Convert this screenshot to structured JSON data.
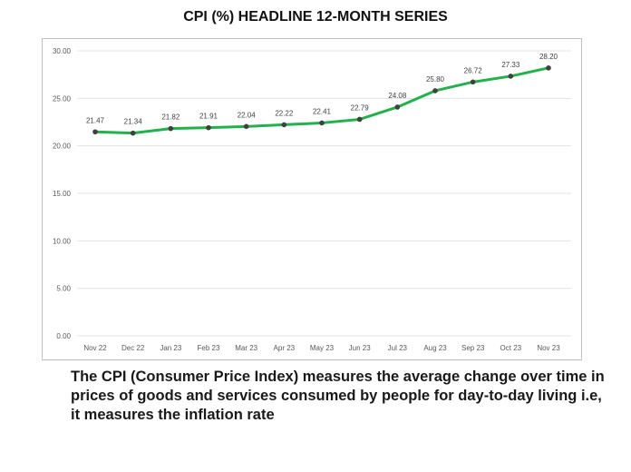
{
  "chart_data": {
    "type": "line",
    "title": "CPI (%)  HEADLINE 12-MONTH SERIES",
    "categories": [
      "Nov 22",
      "Dec 22",
      "Jan 23",
      "Feb 23",
      "Mar 23",
      "Apr 23",
      "May 23",
      "Jun 23",
      "Jul 23",
      "Aug 23",
      "Sep 23",
      "Oct 23",
      "Nov 23"
    ],
    "series": [
      {
        "values": [
          21.47,
          21.34,
          21.82,
          21.91,
          22.04,
          22.22,
          22.41,
          22.79,
          24.08,
          25.8,
          26.72,
          27.33,
          28.2
        ],
        "color": "#22b14c",
        "marker_color": "#404040"
      }
    ],
    "data_labels": [
      "21.47",
      "21.34",
      "21.82",
      "21.91",
      "22.04",
      "22.22",
      "22.41",
      "22.79",
      "24.08",
      "25.80",
      "26.72",
      "27.33",
      "28.20"
    ],
    "yticks": [
      "0.00",
      "5.00",
      "10.00",
      "15.00",
      "20.00",
      "25.00",
      "30.00"
    ],
    "ylim": [
      0,
      30
    ],
    "grid": true,
    "xlabel": "",
    "ylabel": ""
  },
  "description": "The CPI (Consumer Price Index) measures the average change over time in prices of goods and services consumed by people for day-to-day living i.e, it measures the inflation rate"
}
